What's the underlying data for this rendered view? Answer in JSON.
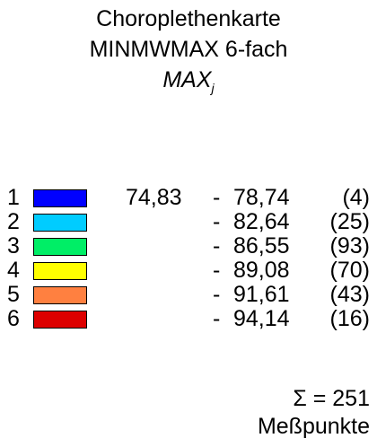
{
  "title": {
    "line1": "Choroplethenkarte",
    "line2": "MINMWMAX 6-fach",
    "var_main": "MAX",
    "var_sub": "j"
  },
  "chart_data": {
    "type": "table",
    "classes": [
      {
        "class": "1",
        "color": "#0000FF",
        "lower": "74,83",
        "dash": "-",
        "upper": "78,74",
        "count": "(4)"
      },
      {
        "class": "2",
        "color": "#00CCFF",
        "lower": "",
        "dash": "-",
        "upper": "82,64",
        "count": "(25)"
      },
      {
        "class": "3",
        "color": "#00EE66",
        "lower": "",
        "dash": "-",
        "upper": "86,55",
        "count": "(93)"
      },
      {
        "class": "4",
        "color": "#FFFF00",
        "lower": "",
        "dash": "-",
        "upper": "89,08",
        "count": "(70)"
      },
      {
        "class": "5",
        "color": "#FF8040",
        "lower": "",
        "dash": "-",
        "upper": "91,61",
        "count": "(43)"
      },
      {
        "class": "6",
        "color": "#DD0000",
        "lower": "",
        "dash": "-",
        "upper": "94,14",
        "count": "(16)"
      }
    ],
    "total_label": "Σ = 251",
    "total_unit": "Meßpunkte"
  }
}
